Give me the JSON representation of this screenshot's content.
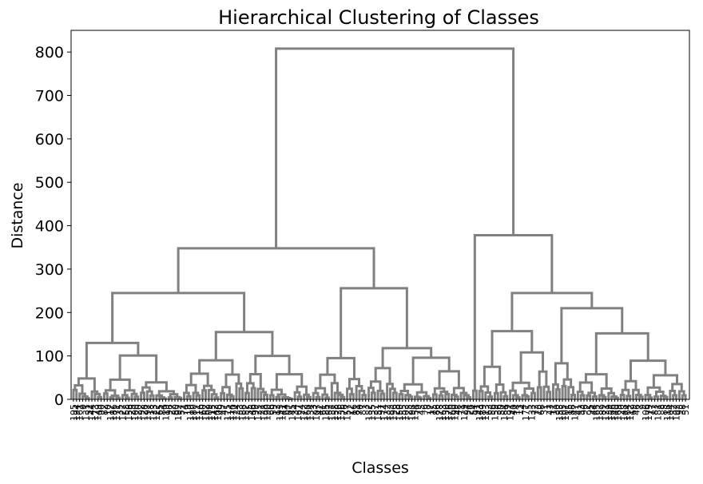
{
  "chart_data": {
    "type": "dendrogram",
    "title": "Hierarchical Clustering of Classes",
    "xlabel": "Classes",
    "ylabel": "Distance",
    "ylim": [
      0,
      850
    ],
    "yticks": [
      0,
      100,
      200,
      300,
      400,
      500,
      600,
      700,
      800
    ],
    "link_color": "#808080",
    "leaf_count": 200,
    "grid": false,
    "clusters": {
      "distance": 808,
      "children": [
        {
          "distance": 348,
          "children": [
            {
              "distance": 245,
              "children": [
                {
                  "distance": 130,
                  "children": [
                    {
                      "distance": 48,
                      "leaves": 10
                    },
                    {
                      "distance": 101,
                      "leaves": 26
                    }
                  ]
                },
                {
                  "distance": 155,
                  "children": [
                    {
                      "distance": 90,
                      "leaves": 20
                    },
                    {
                      "distance": 100,
                      "leaves": 22
                    }
                  ]
                }
              ]
            },
            {
              "distance": 256,
              "children": [
                {
                  "distance": 95,
                  "leaves": 18
                },
                {
                  "distance": 118,
                  "children": [
                    {
                      "distance": 72,
                      "leaves": 10
                    },
                    {
                      "distance": 96,
                      "leaves": 24
                    }
                  ]
                }
              ]
            }
          ]
        },
        {
          "distance": 378,
          "children": [
            {
              "distance": 20,
              "leaves": 2
            },
            {
              "distance": 245,
              "children": [
                {
                  "distance": 157,
                  "children": [
                    {
                      "distance": 75,
                      "leaves": 10
                    },
                    {
                      "distance": 108,
                      "leaves": 14
                    }
                  ]
                },
                {
                  "distance": 210,
                  "children": [
                    {
                      "distance": 83,
                      "leaves": 8
                    },
                    {
                      "distance": 152,
                      "leaves": 36
                    }
                  ]
                }
              ]
            }
          ]
        }
      ]
    }
  }
}
